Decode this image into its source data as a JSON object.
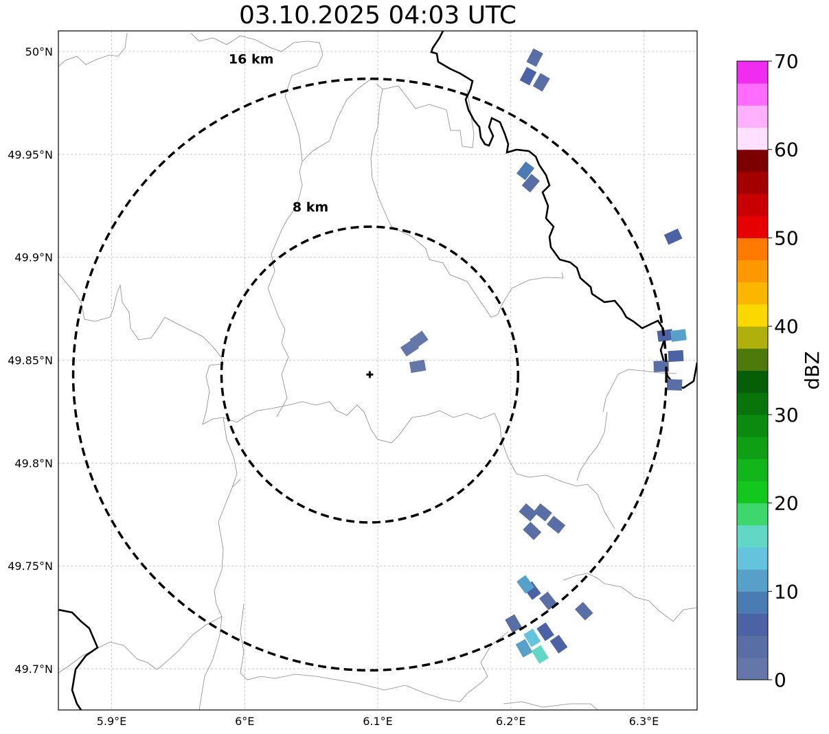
{
  "title": "03.10.2025 04:03 UTC",
  "map": {
    "lon_range": [
      5.86,
      6.34
    ],
    "lat_range": [
      49.68,
      50.01
    ],
    "lon_ticks": [
      5.9,
      6.0,
      6.1,
      6.2,
      6.3
    ],
    "lon_tick_labels": [
      "5.9°E",
      "6°E",
      "6.1°E",
      "6.2°E",
      "6.3°E"
    ],
    "lat_ticks": [
      49.7,
      49.75,
      49.8,
      49.85,
      49.9,
      49.95,
      50.0
    ],
    "lat_tick_labels": [
      "49.7°N",
      "49.75°N",
      "49.8°N",
      "49.85°N",
      "49.9°N",
      "49.95°N",
      "50°N"
    ],
    "gridlines": true,
    "radar_site": {
      "lon": 6.094,
      "lat": 49.843
    },
    "rings": [
      {
        "radius_km": 8,
        "label": "8 km"
      },
      {
        "radius_km": 16,
        "label": "16 km"
      }
    ]
  },
  "colorbar": {
    "label": "dBZ",
    "min": 0,
    "max": 70,
    "step": 2.5,
    "tick_values": [
      0,
      10,
      20,
      30,
      40,
      50,
      60,
      70
    ],
    "tick_labels": [
      "0",
      "10",
      "20",
      "30",
      "40",
      "50",
      "60",
      "70"
    ],
    "colors": [
      "#6577a8",
      "#5a6ea6",
      "#4b63a4",
      "#4a7cb3",
      "#56a0c9",
      "#64c4de",
      "#62d7c5",
      "#3ed76e",
      "#12c81e",
      "#12b51a",
      "#0e9f14",
      "#0b8a10",
      "#087409",
      "#065f06",
      "#4d7a0a",
      "#b0b00c",
      "#fbd800",
      "#fdb600",
      "#fe9800",
      "#fe7a00",
      "#e60000",
      "#c80000",
      "#a50000",
      "#7d0000",
      "#ffe0ff",
      "#ffb0ff",
      "#ff6cff",
      "#ef2cef"
    ]
  },
  "echoes": [
    {
      "lon": 6.124,
      "lat": 49.856,
      "dbz": 2
    },
    {
      "lon": 6.131,
      "lat": 49.86,
      "dbz": 2
    },
    {
      "lon": 6.13,
      "lat": 49.847,
      "dbz": 2
    },
    {
      "lon": 6.218,
      "lat": 49.997,
      "dbz": 4
    },
    {
      "lon": 6.213,
      "lat": 49.988,
      "dbz": 5
    },
    {
      "lon": 6.223,
      "lat": 49.985,
      "dbz": 3
    },
    {
      "lon": 6.215,
      "lat": 49.936,
      "dbz": 4
    },
    {
      "lon": 6.211,
      "lat": 49.942,
      "dbz": 9
    },
    {
      "lon": 6.322,
      "lat": 49.91,
      "dbz": 5
    },
    {
      "lon": 6.316,
      "lat": 49.862,
      "dbz": 5
    },
    {
      "lon": 6.324,
      "lat": 49.852,
      "dbz": 6
    },
    {
      "lon": 6.313,
      "lat": 49.847,
      "dbz": 4
    },
    {
      "lon": 6.326,
      "lat": 49.862,
      "dbz": 12
    },
    {
      "lon": 6.323,
      "lat": 49.838,
      "dbz": 4
    },
    {
      "lon": 6.213,
      "lat": 49.776,
      "dbz": 3
    },
    {
      "lon": 6.224,
      "lat": 49.776,
      "dbz": 4
    },
    {
      "lon": 6.216,
      "lat": 49.767,
      "dbz": 3
    },
    {
      "lon": 6.234,
      "lat": 49.77,
      "dbz": 3
    },
    {
      "lon": 6.216,
      "lat": 49.738,
      "dbz": 5
    },
    {
      "lon": 6.228,
      "lat": 49.733,
      "dbz": 4
    },
    {
      "lon": 6.211,
      "lat": 49.741,
      "dbz": 12
    },
    {
      "lon": 6.255,
      "lat": 49.728,
      "dbz": 4
    },
    {
      "lon": 6.202,
      "lat": 49.722,
      "dbz": 3
    },
    {
      "lon": 6.216,
      "lat": 49.715,
      "dbz": 14
    },
    {
      "lon": 6.226,
      "lat": 49.718,
      "dbz": 5
    },
    {
      "lon": 6.236,
      "lat": 49.712,
      "dbz": 5
    },
    {
      "lon": 6.21,
      "lat": 49.71,
      "dbz": 10
    },
    {
      "lon": 6.222,
      "lat": 49.707,
      "dbz": 16
    }
  ]
}
